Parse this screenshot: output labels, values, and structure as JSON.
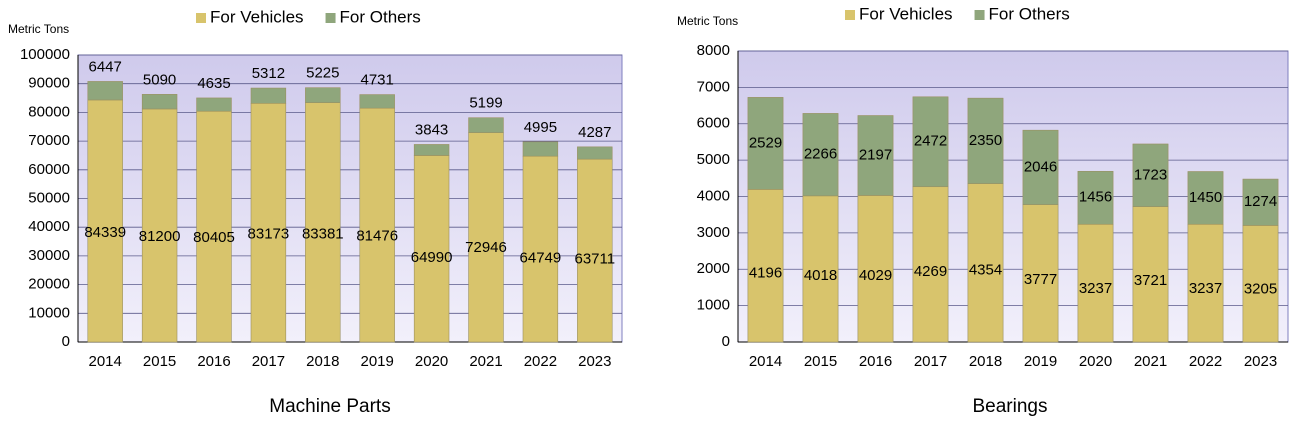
{
  "chart_data": [
    {
      "type": "bar",
      "stacked": true,
      "title": "Machine Parts",
      "y_label": "Metric Tons",
      "categories": [
        "2014",
        "2015",
        "2016",
        "2017",
        "2018",
        "2019",
        "2020",
        "2021",
        "2022",
        "2023"
      ],
      "series": [
        {
          "name": "For Vehicles",
          "color": "#d8c46c",
          "values": [
            84339,
            81200,
            80405,
            83173,
            83381,
            81476,
            64990,
            72946,
            64749,
            63711
          ]
        },
        {
          "name": "For Others",
          "color": "#8fa67c",
          "values": [
            6447,
            5090,
            4635,
            5312,
            5225,
            4731,
            3843,
            5199,
            4995,
            4287
          ]
        }
      ],
      "ylim": [
        0,
        100000
      ],
      "yticks": [
        0,
        10000,
        20000,
        30000,
        40000,
        50000,
        60000,
        70000,
        80000,
        90000,
        100000
      ],
      "grid": true
    },
    {
      "type": "bar",
      "stacked": true,
      "title": "Bearings",
      "y_label": "Metric Tons",
      "categories": [
        "2014",
        "2015",
        "2016",
        "2017",
        "2018",
        "2019",
        "2020",
        "2021",
        "2022",
        "2023"
      ],
      "series": [
        {
          "name": "For Vehicles",
          "color": "#d8c46c",
          "values": [
            4196,
            4018,
            4029,
            4269,
            4354,
            3777,
            3237,
            3721,
            3237,
            3205
          ]
        },
        {
          "name": "For Others",
          "color": "#8fa67c",
          "values": [
            2529,
            2266,
            2197,
            2472,
            2350,
            2046,
            1456,
            1723,
            1450,
            1274
          ]
        }
      ],
      "ylim": [
        0,
        8000
      ],
      "yticks": [
        0,
        1000,
        2000,
        3000,
        4000,
        5000,
        6000,
        7000,
        8000
      ],
      "grid": true
    }
  ]
}
